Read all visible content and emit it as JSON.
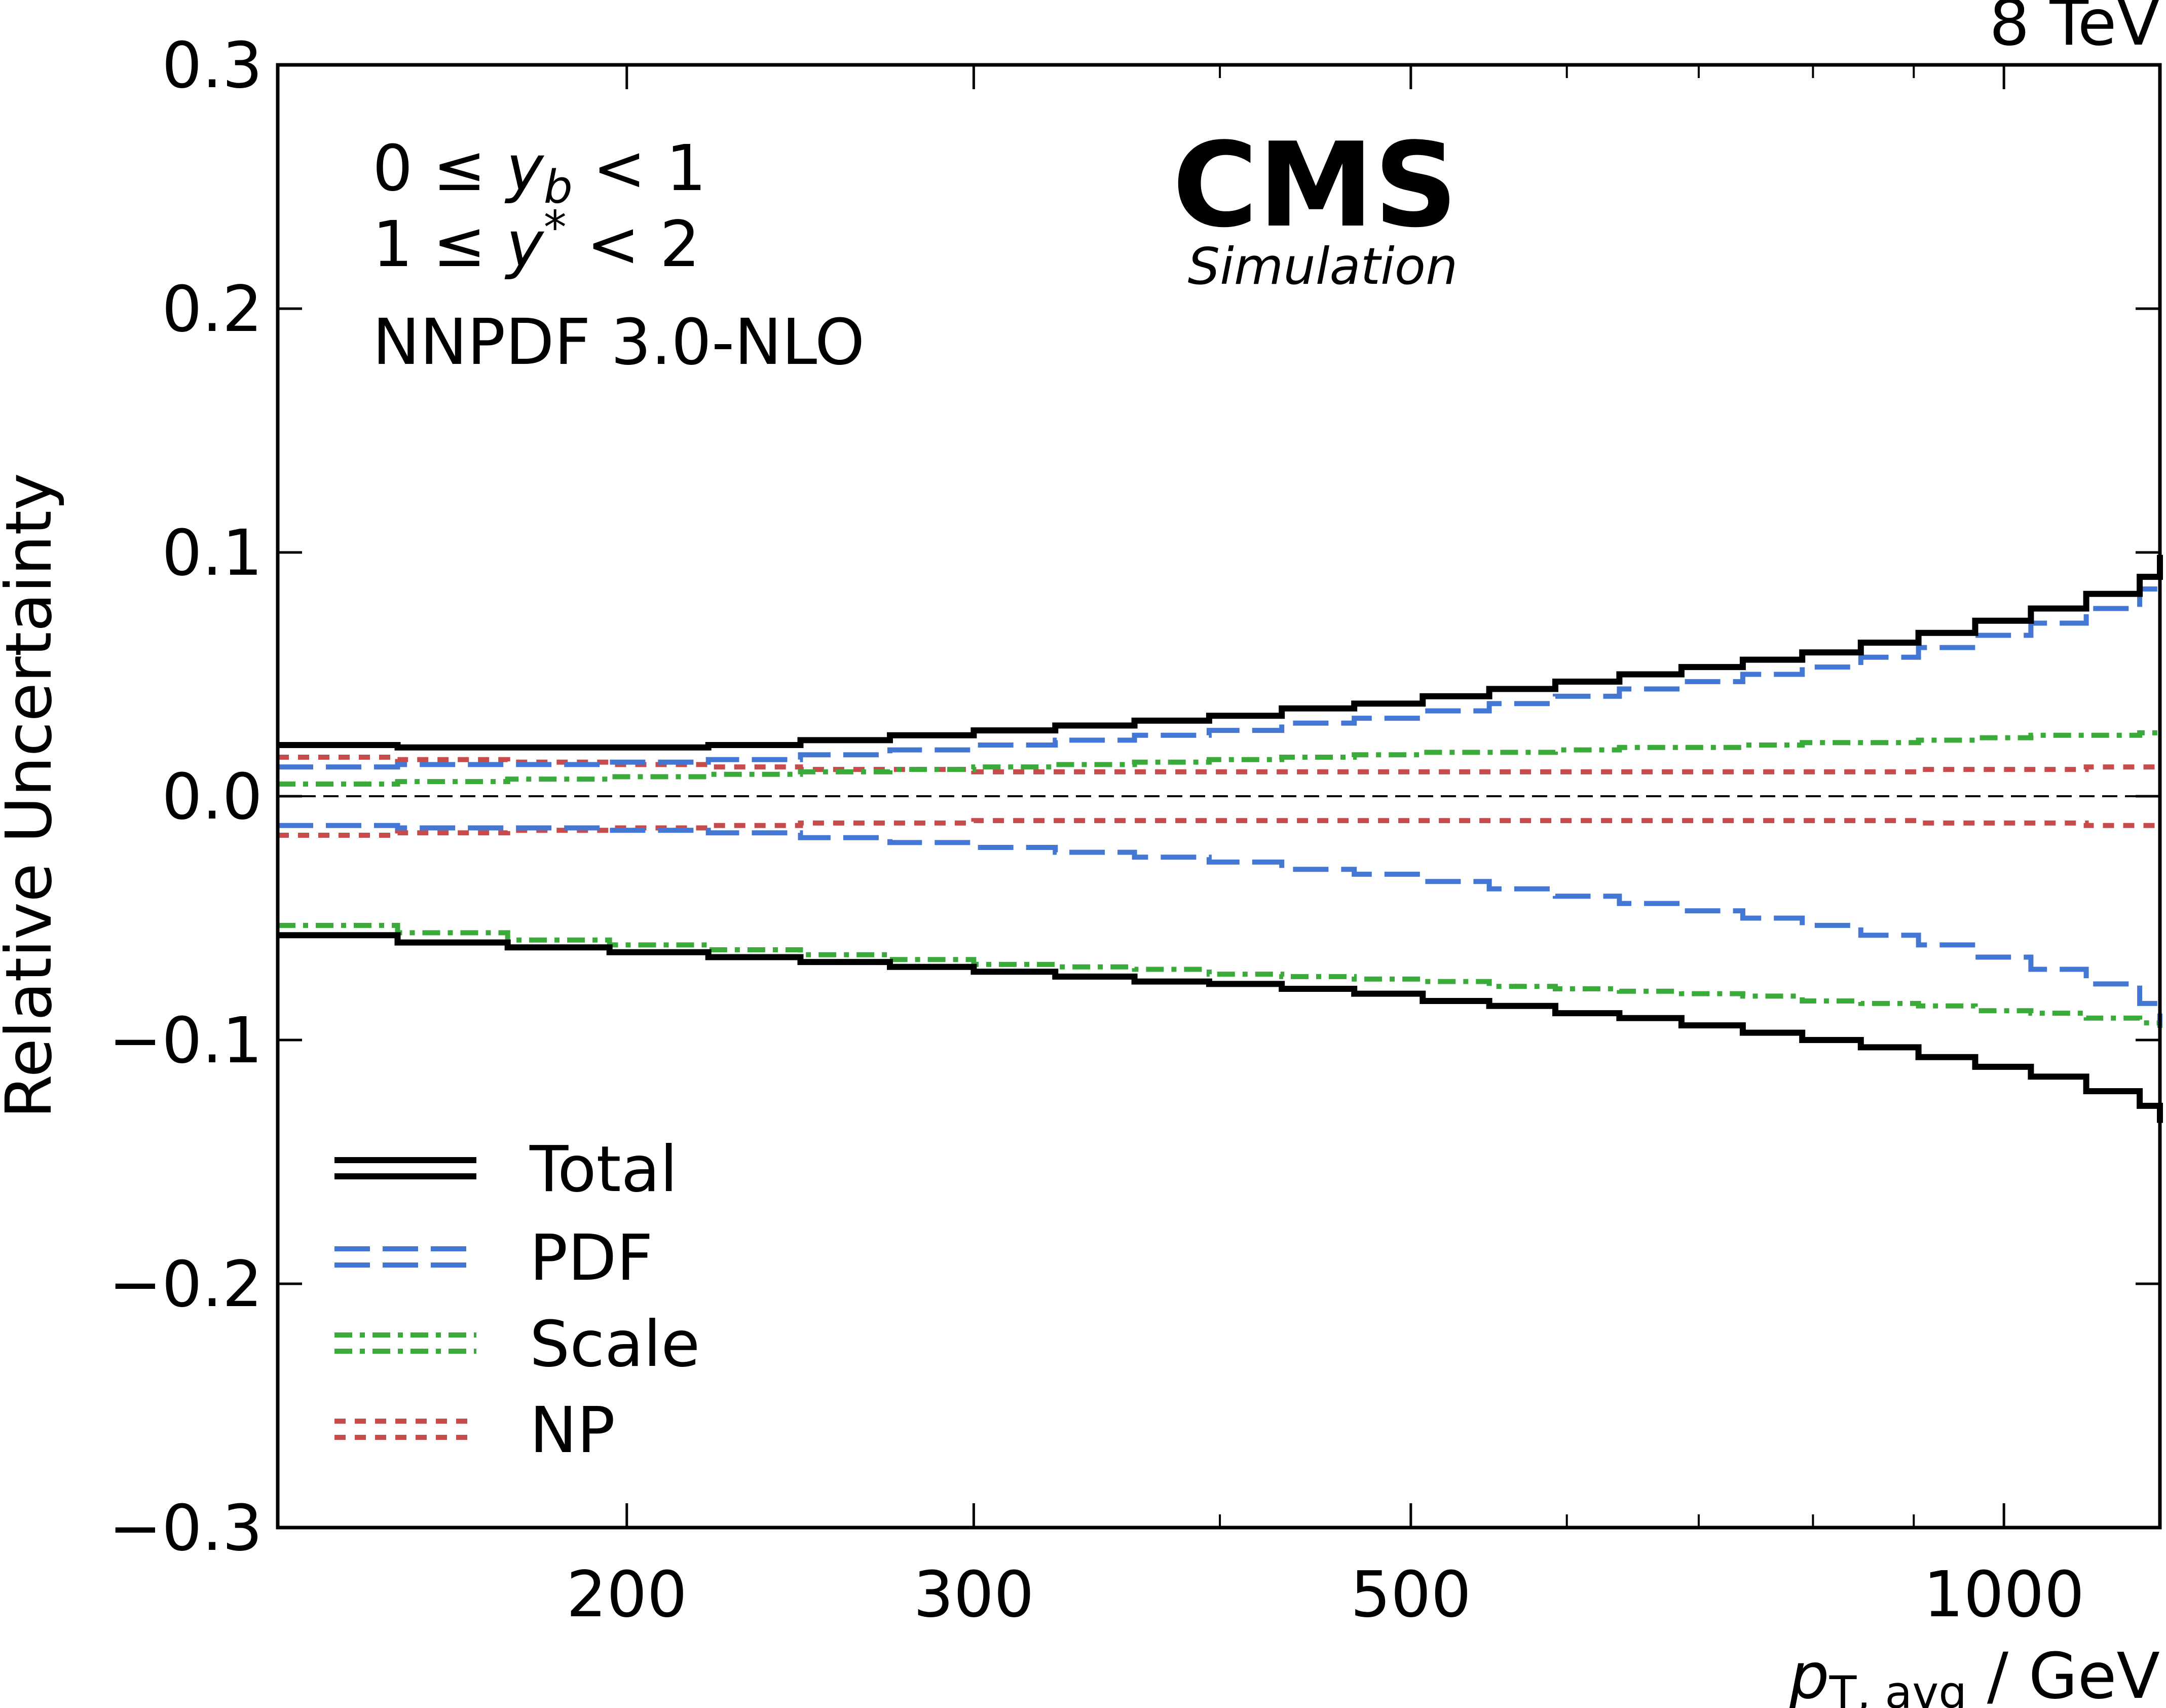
{
  "chart_data": {
    "type": "line",
    "energy_label": "8 TeV",
    "experiment": "CMS",
    "experiment_sub": "Simulation",
    "annotations": {
      "yb_range": {
        "pre": "0 ≤ ",
        "var": "y",
        "sub": "b",
        "post": " < 1"
      },
      "ystar_range": {
        "pre": "1 ≤ ",
        "var": "y",
        "sup": "*",
        "post": " < 2"
      },
      "pdf_set": "NNPDF 3.0-NLO"
    },
    "xlabel": {
      "var": "p",
      "sub": "T, avg",
      "rest": " / GeV"
    },
    "ylabel": "Relative Uncertainty",
    "xscale": "log",
    "xlim": [
      133,
      1200
    ],
    "ylim": [
      -0.3,
      0.3
    ],
    "yticks": [
      -0.3,
      -0.2,
      -0.1,
      0.0,
      0.1,
      0.2,
      0.3
    ],
    "ytick_labels": [
      "−0.3",
      "−0.2",
      "−0.1",
      "0.0",
      "0.1",
      "0.2",
      "0.3"
    ],
    "xticks": [
      200,
      300,
      500,
      1000
    ],
    "xtick_labels": [
      "200",
      "300",
      "500",
      "1000"
    ],
    "x_minor_ticks": [
      400,
      600,
      700,
      800,
      900
    ],
    "bin_edges": [
      133,
      153,
      174,
      196,
      220,
      245,
      272,
      300,
      330,
      362,
      395,
      430,
      468,
      507,
      548,
      592,
      638,
      686,
      737,
      790,
      846,
      905,
      967,
      1032,
      1101,
      1172,
      1200
    ],
    "series": [
      {
        "name": "Total",
        "color": "#000000",
        "style": "solid",
        "upper": [
          0.021,
          0.02,
          0.02,
          0.02,
          0.021,
          0.023,
          0.025,
          0.027,
          0.029,
          0.031,
          0.033,
          0.036,
          0.038,
          0.041,
          0.044,
          0.047,
          0.05,
          0.053,
          0.056,
          0.059,
          0.063,
          0.067,
          0.072,
          0.077,
          0.083,
          0.09,
          0.099
        ],
        "lower": [
          -0.057,
          -0.06,
          -0.062,
          -0.064,
          -0.066,
          -0.068,
          -0.07,
          -0.072,
          -0.074,
          -0.076,
          -0.077,
          -0.079,
          -0.081,
          -0.084,
          -0.086,
          -0.089,
          -0.091,
          -0.094,
          -0.097,
          -0.1,
          -0.103,
          -0.107,
          -0.111,
          -0.115,
          -0.121,
          -0.127,
          -0.134
        ]
      },
      {
        "name": "PDF",
        "color": "#4477d4",
        "style": "dashed",
        "upper": [
          0.012,
          0.013,
          0.013,
          0.014,
          0.015,
          0.017,
          0.019,
          0.021,
          0.023,
          0.025,
          0.027,
          0.03,
          0.032,
          0.035,
          0.038,
          0.041,
          0.044,
          0.047,
          0.05,
          0.053,
          0.057,
          0.061,
          0.066,
          0.071,
          0.077,
          0.085,
          0.094
        ],
        "lower": [
          -0.012,
          -0.013,
          -0.013,
          -0.014,
          -0.015,
          -0.017,
          -0.019,
          -0.021,
          -0.023,
          -0.025,
          -0.027,
          -0.03,
          -0.032,
          -0.035,
          -0.038,
          -0.041,
          -0.044,
          -0.047,
          -0.05,
          -0.053,
          -0.057,
          -0.061,
          -0.066,
          -0.071,
          -0.077,
          -0.085,
          -0.094
        ]
      },
      {
        "name": "Scale",
        "color": "#3aaa3a",
        "style": "dashdot",
        "upper": [
          0.005,
          0.006,
          0.007,
          0.008,
          0.009,
          0.01,
          0.011,
          0.012,
          0.013,
          0.014,
          0.015,
          0.016,
          0.017,
          0.018,
          0.018,
          0.019,
          0.02,
          0.02,
          0.021,
          0.022,
          0.022,
          0.023,
          0.024,
          0.025,
          0.025,
          0.026,
          0.027
        ],
        "lower": [
          -0.053,
          -0.056,
          -0.059,
          -0.061,
          -0.063,
          -0.065,
          -0.067,
          -0.069,
          -0.07,
          -0.071,
          -0.073,
          -0.074,
          -0.075,
          -0.076,
          -0.078,
          -0.079,
          -0.08,
          -0.081,
          -0.082,
          -0.084,
          -0.085,
          -0.086,
          -0.088,
          -0.089,
          -0.091,
          -0.093,
          -0.095
        ]
      },
      {
        "name": "NP",
        "color": "#c84b4b",
        "style": "dotted",
        "upper": [
          0.016,
          0.015,
          0.014,
          0.013,
          0.012,
          0.011,
          0.011,
          0.01,
          0.01,
          0.01,
          0.01,
          0.01,
          0.01,
          0.01,
          0.01,
          0.01,
          0.01,
          0.01,
          0.01,
          0.01,
          0.01,
          0.011,
          0.011,
          0.011,
          0.012,
          0.012,
          0.012
        ],
        "lower": [
          -0.016,
          -0.015,
          -0.014,
          -0.013,
          -0.012,
          -0.011,
          -0.011,
          -0.01,
          -0.01,
          -0.01,
          -0.01,
          -0.01,
          -0.01,
          -0.01,
          -0.01,
          -0.01,
          -0.01,
          -0.01,
          -0.01,
          -0.01,
          -0.01,
          -0.011,
          -0.011,
          -0.011,
          -0.012,
          -0.012,
          -0.012
        ]
      }
    ],
    "legend": {
      "position": "bottom-left",
      "entries": [
        "Total",
        "PDF",
        "Scale",
        "NP"
      ]
    },
    "zero_line": {
      "y": 0.0,
      "color": "#000000",
      "style": "dashed"
    },
    "grid": false
  }
}
